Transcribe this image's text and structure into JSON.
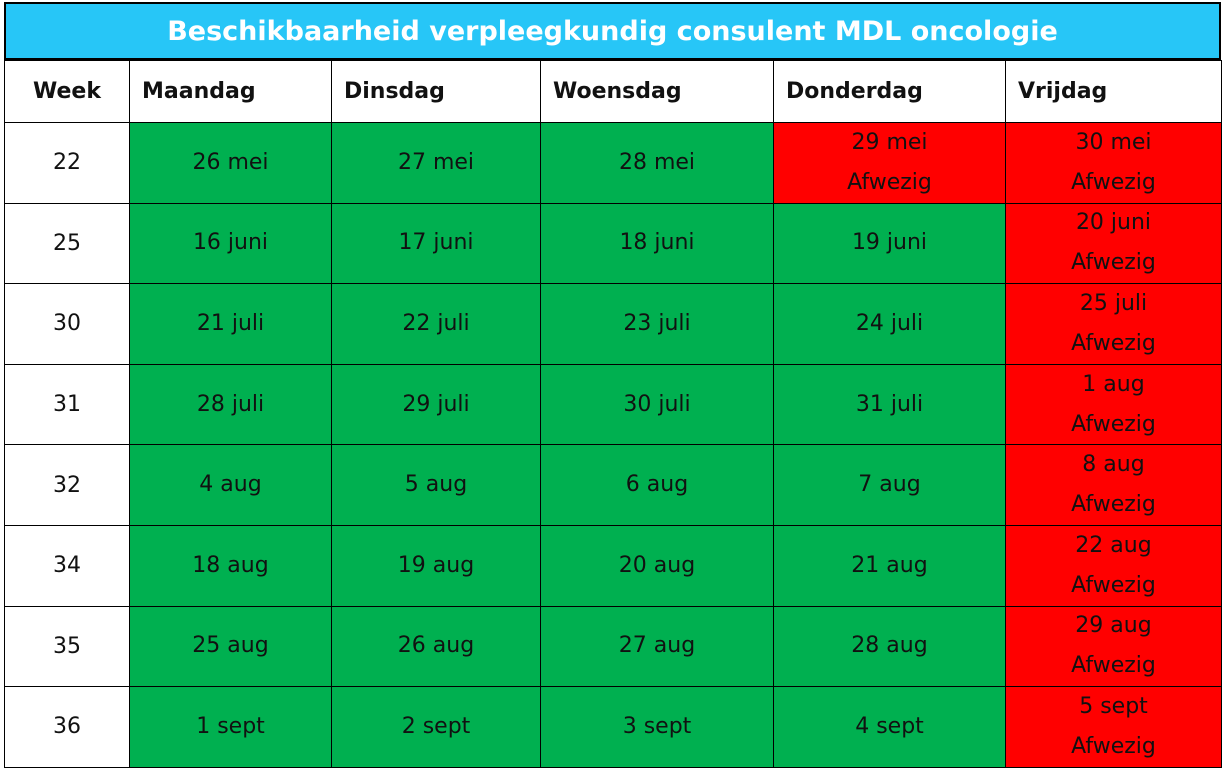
{
  "title": "Beschikbaarheid verpleegkundig consulent MDL oncologie",
  "table": {
    "header": [
      "Week",
      "Maandag",
      "Dinsdag",
      "Woensdag",
      "Donderdag",
      "Vrijdag"
    ],
    "rows": [
      {
        "week": "22",
        "cells": [
          {
            "date": "26 mei"
          },
          {
            "date": "27 mei"
          },
          {
            "date": "28 mei"
          },
          {
            "date": "29 mei",
            "status": "Afwezig"
          },
          {
            "date": "30 mei",
            "status": "Afwezig"
          }
        ]
      },
      {
        "week": "25",
        "cells": [
          {
            "date": "16 juni"
          },
          {
            "date": "17 juni"
          },
          {
            "date": "18 juni"
          },
          {
            "date": "19 juni"
          },
          {
            "date": "20 juni",
            "status": "Afwezig"
          }
        ]
      },
      {
        "week": "30",
        "cells": [
          {
            "date": "21 juli"
          },
          {
            "date": "22 juli"
          },
          {
            "date": "23 juli"
          },
          {
            "date": "24 juli"
          },
          {
            "date": "25 juli",
            "status": "Afwezig"
          }
        ]
      },
      {
        "week": "31",
        "cells": [
          {
            "date": "28 juli"
          },
          {
            "date": "29 juli"
          },
          {
            "date": "30 juli"
          },
          {
            "date": "31 juli"
          },
          {
            "date": "1 aug",
            "status": "Afwezig"
          }
        ]
      },
      {
        "week": "32",
        "cells": [
          {
            "date": "4 aug"
          },
          {
            "date": "5 aug"
          },
          {
            "date": "6 aug"
          },
          {
            "date": "7 aug"
          },
          {
            "date": "8 aug",
            "status": "Afwezig"
          }
        ]
      },
      {
        "week": "34",
        "cells": [
          {
            "date": "18 aug"
          },
          {
            "date": "19 aug"
          },
          {
            "date": "20 aug"
          },
          {
            "date": "21 aug"
          },
          {
            "date": "22 aug",
            "status": "Afwezig"
          }
        ]
      },
      {
        "week": "35",
        "cells": [
          {
            "date": "25 aug"
          },
          {
            "date": "26 aug"
          },
          {
            "date": "27 aug"
          },
          {
            "date": "28 aug"
          },
          {
            "date": "29 aug",
            "status": "Afwezig"
          }
        ]
      },
      {
        "week": "36",
        "cells": [
          {
            "date": "1 sept"
          },
          {
            "date": "2 sept"
          },
          {
            "date": "3 sept"
          },
          {
            "date": "4 sept"
          },
          {
            "date": "5 sept",
            "status": "Afwezig"
          }
        ]
      }
    ]
  }
}
